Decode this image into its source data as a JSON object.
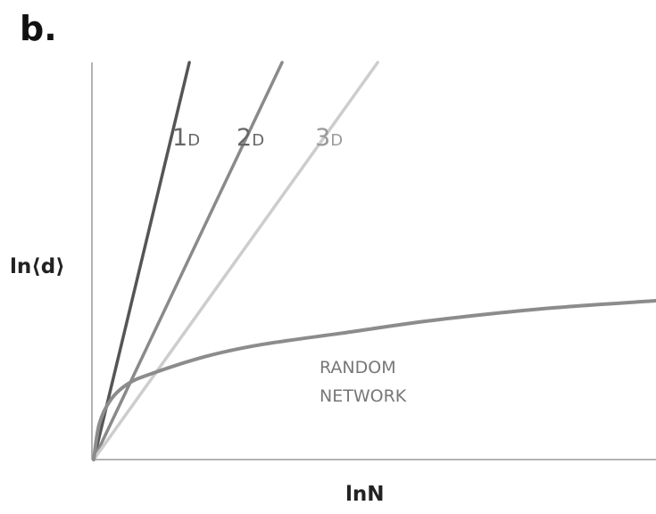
{
  "panel_letter": "b.",
  "chart_data": {
    "type": "line",
    "title": "",
    "xlabel": "lnN",
    "ylabel": "ln⟨d⟩",
    "grid": false,
    "legend": "none",
    "x_ticks": [],
    "y_ticks": [],
    "xlim": [
      0,
      1
    ],
    "ylim": [
      0,
      1
    ],
    "series": [
      {
        "name": "1D",
        "label_big": "1",
        "label_small": "D",
        "color": "#555555",
        "x": [
          0,
          0.17
        ],
        "y": [
          0,
          1.0
        ]
      },
      {
        "name": "2D",
        "label_big": "2",
        "label_small": "D",
        "color": "#8a8a8a",
        "x": [
          0,
          0.335
        ],
        "y": [
          0,
          1.0
        ]
      },
      {
        "name": "3D",
        "label_big": "3",
        "label_small": "D",
        "color": "#cdcdcd",
        "x": [
          0,
          0.505
        ],
        "y": [
          0,
          1.0
        ]
      },
      {
        "name": "RANDOM NETWORK",
        "label_lines": [
          "RANDOM",
          "NETWORK"
        ],
        "color": "#8c8c8c",
        "x": [
          0,
          0.01,
          0.03,
          0.06,
          0.1,
          0.2,
          0.3,
          0.45,
          0.6,
          0.8,
          1.0
        ],
        "y": [
          0,
          0.09,
          0.15,
          0.19,
          0.215,
          0.26,
          0.29,
          0.32,
          0.35,
          0.38,
          0.4
        ]
      }
    ]
  }
}
